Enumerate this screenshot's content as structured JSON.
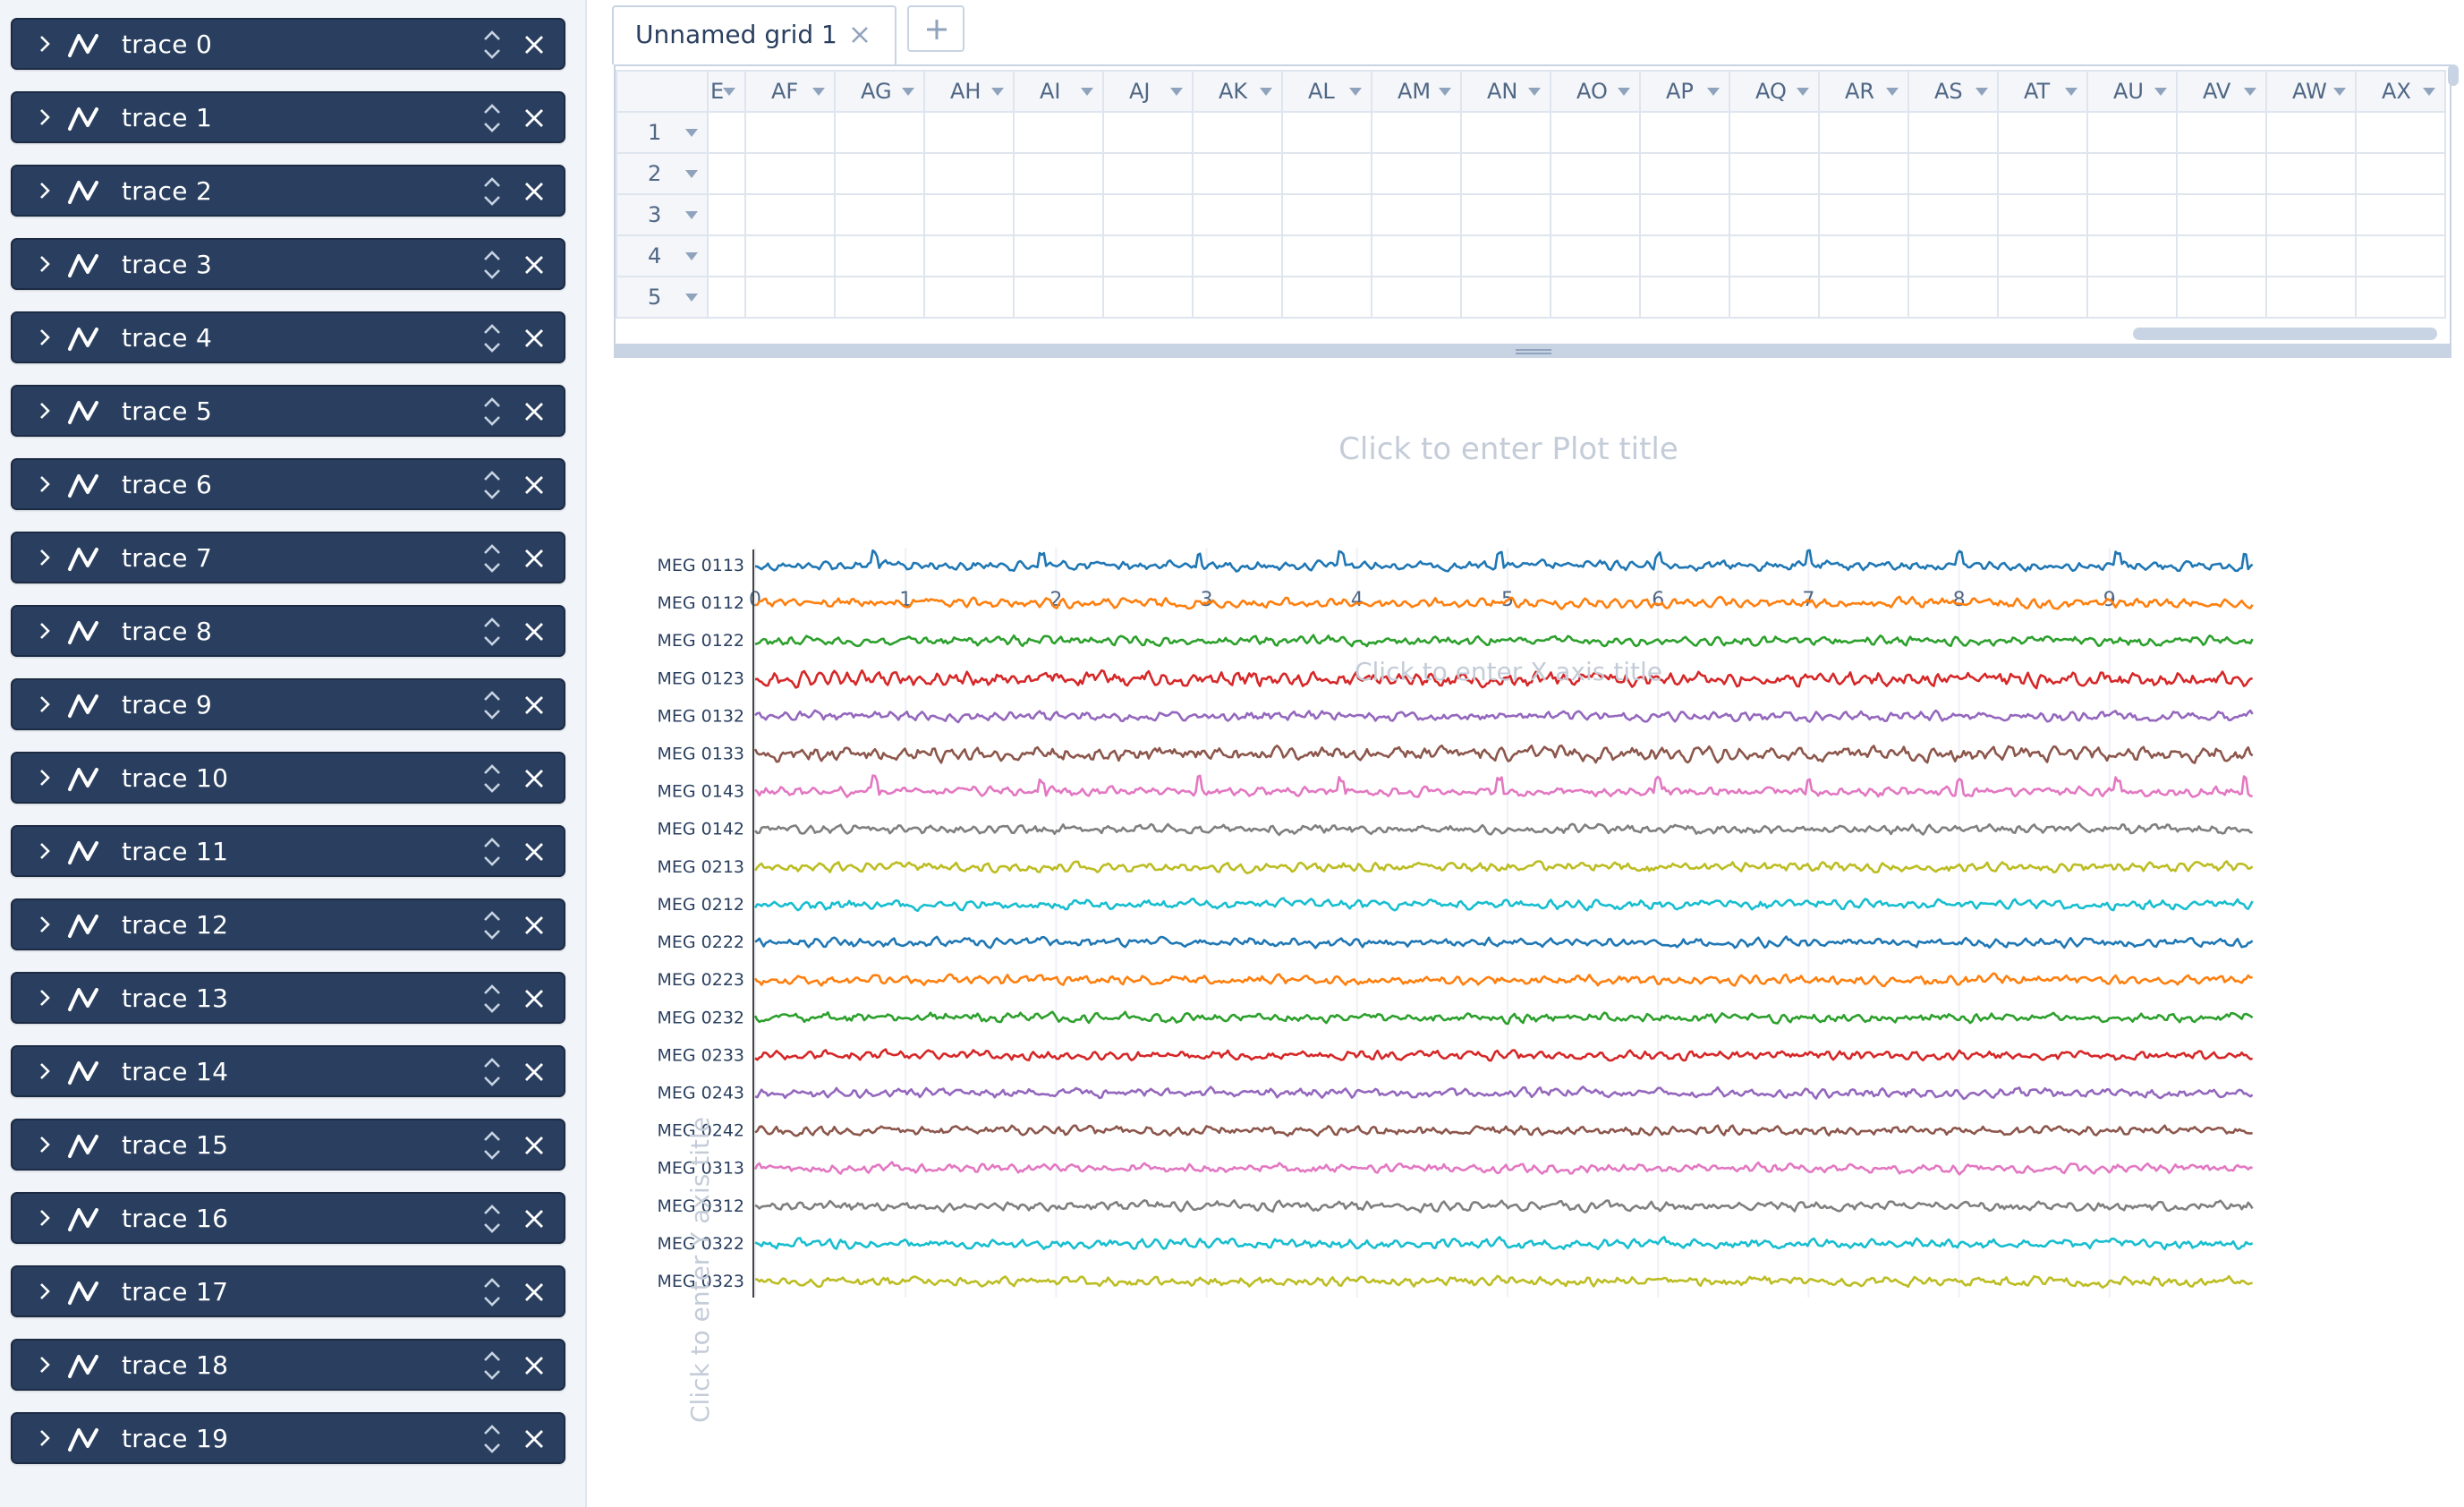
{
  "sidebar": {
    "traces": [
      {
        "label": "trace 0"
      },
      {
        "label": "trace 1"
      },
      {
        "label": "trace 2"
      },
      {
        "label": "trace 3"
      },
      {
        "label": "trace 4"
      },
      {
        "label": "trace 5"
      },
      {
        "label": "trace 6"
      },
      {
        "label": "trace 7"
      },
      {
        "label": "trace 8"
      },
      {
        "label": "trace 9"
      },
      {
        "label": "trace 10"
      },
      {
        "label": "trace 11"
      },
      {
        "label": "trace 12"
      },
      {
        "label": "trace 13"
      },
      {
        "label": "trace 14"
      },
      {
        "label": "trace 15"
      },
      {
        "label": "trace 16"
      },
      {
        "label": "trace 17"
      },
      {
        "label": "trace 18"
      },
      {
        "label": "trace 19"
      }
    ]
  },
  "tabs": {
    "active_label": "Unnamed grid 1",
    "add_label": "+"
  },
  "grid": {
    "columns": [
      "E",
      "AF",
      "AG",
      "AH",
      "AI",
      "AJ",
      "AK",
      "AL",
      "AM",
      "AN",
      "AO",
      "AP",
      "AQ",
      "AR",
      "AS",
      "AT",
      "AU",
      "AV",
      "AW",
      "AX"
    ],
    "rows": [
      "1",
      "2",
      "3",
      "4",
      "5"
    ]
  },
  "plot": {
    "title_placeholder": "Click to enter Plot title",
    "xaxis_placeholder": "Click to enter X axis title",
    "yaxis_placeholder": "Click to enter Y axis title"
  },
  "chart_data": {
    "type": "line",
    "title": "",
    "xlabel": "",
    "ylabel": "",
    "x_ticks": [
      "0",
      "1",
      "2",
      "3",
      "4",
      "5",
      "6",
      "7",
      "8",
      "9"
    ],
    "xlim": [
      0,
      10
    ],
    "grid": true,
    "series": [
      {
        "name": "MEG 0113",
        "color": "#1f77b4"
      },
      {
        "name": "MEG 0112",
        "color": "#ff7f0e"
      },
      {
        "name": "MEG 0122",
        "color": "#2ca02c"
      },
      {
        "name": "MEG 0123",
        "color": "#d62728"
      },
      {
        "name": "MEG 0132",
        "color": "#9467bd"
      },
      {
        "name": "MEG 0133",
        "color": "#8c564b"
      },
      {
        "name": "MEG 0143",
        "color": "#e377c2"
      },
      {
        "name": "MEG 0142",
        "color": "#7f7f7f"
      },
      {
        "name": "MEG 0213",
        "color": "#bcbd22"
      },
      {
        "name": "MEG 0212",
        "color": "#17becf"
      },
      {
        "name": "MEG 0222",
        "color": "#1f77b4"
      },
      {
        "name": "MEG 0223",
        "color": "#ff7f0e"
      },
      {
        "name": "MEG 0232",
        "color": "#2ca02c"
      },
      {
        "name": "MEG 0233",
        "color": "#d62728"
      },
      {
        "name": "MEG 0243",
        "color": "#9467bd"
      },
      {
        "name": "MEG 0242",
        "color": "#8c564b"
      },
      {
        "name": "MEG 0313",
        "color": "#e377c2"
      },
      {
        "name": "MEG 0312",
        "color": "#7f7f7f"
      },
      {
        "name": "MEG 0322",
        "color": "#17becf"
      },
      {
        "name": "MEG 0323",
        "color": "#bcbd22"
      }
    ]
  }
}
